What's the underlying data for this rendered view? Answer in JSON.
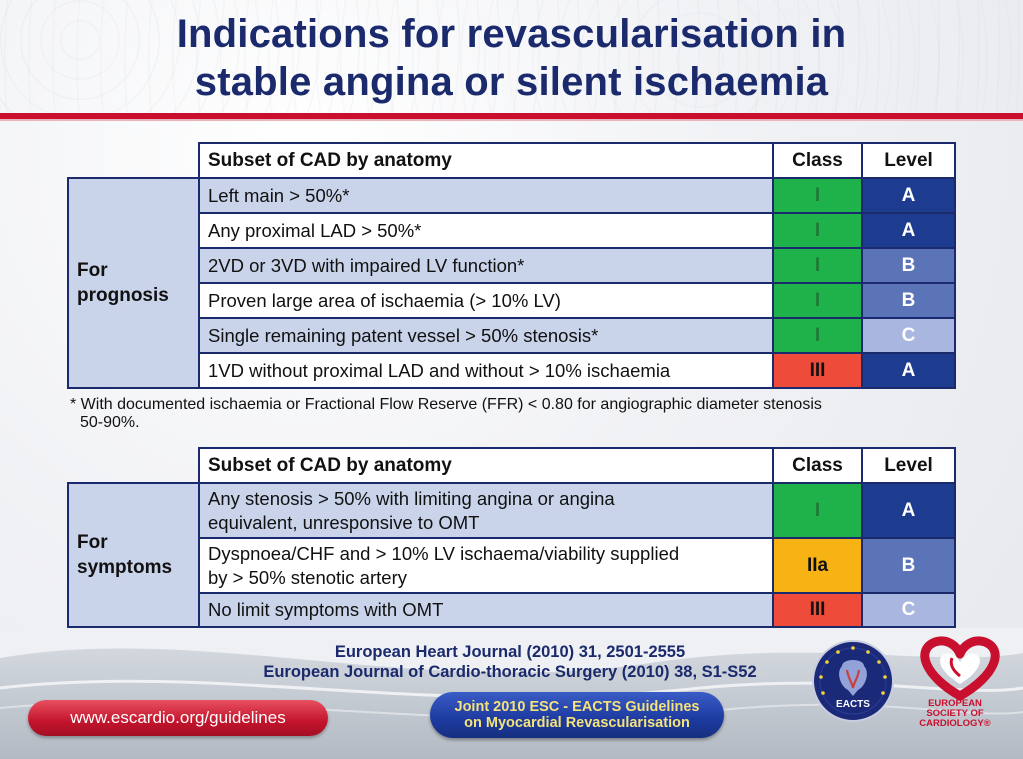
{
  "title": {
    "line1": "Indications for revascularisation in",
    "line2": "stable angina or silent ischaemia"
  },
  "prognosis_table": {
    "headers": {
      "subset": "Subset of CAD by anatomy",
      "class": "Class",
      "level": "Level"
    },
    "group_label_line1": "For",
    "group_label_line2": "prognosis",
    "rows": [
      {
        "subset": "Left main > 50%*",
        "class": "I",
        "level": "A"
      },
      {
        "subset": "Any proximal LAD > 50%*",
        "class": "I",
        "level": "A"
      },
      {
        "subset": "2VD or 3VD with impaired LV function*",
        "class": "I",
        "level": "B"
      },
      {
        "subset": "Proven large area of ischaemia (> 10% LV)",
        "class": "I",
        "level": "B"
      },
      {
        "subset": "Single remaining patent vessel > 50% stenosis*",
        "class": "I",
        "level": "C"
      },
      {
        "subset": "1VD without proximal LAD and without > 10% ischaemia",
        "class": "III",
        "level": "A"
      }
    ]
  },
  "footnote": {
    "line1": "* With documented ischaemia or Fractional Flow Reserve (FFR) < 0.80 for angiographic diameter stenosis",
    "line2": "50-90%."
  },
  "symptoms_table": {
    "headers": {
      "subset": "Subset of CAD by anatomy",
      "class": "Class",
      "level": "Level"
    },
    "group_label_line1": "For",
    "group_label_line2": "symptoms",
    "rows": [
      {
        "subset_line1": "Any stenosis > 50% with limiting angina or angina",
        "subset_line2": "equivalent, unresponsive to OMT",
        "class": "I",
        "level": "A"
      },
      {
        "subset_line1": "Dyspnoea/CHF and > 10% LV ischaema/viability supplied",
        "subset_line2": "by > 50% stenotic artery",
        "class": "IIa",
        "level": "B"
      },
      {
        "subset_line1": "No limit symptoms with OMT",
        "subset_line2": "",
        "class": "III",
        "level": "C"
      }
    ]
  },
  "references": {
    "line1": "European Heart Journal (2010) 31, 2501-2555",
    "line2": "European Journal of Cardio-thoracic Surgery (2010) 38, S1-S52"
  },
  "url": "www.escardio.org/guidelines",
  "joint": {
    "line1": "Joint 2010 ESC - EACTS Guidelines",
    "line2": "on Myocardial Revascularisation"
  },
  "logos": {
    "eacts_text": "EACTS",
    "esc_line1": "EUROPEAN",
    "esc_line2": "SOCIETY OF",
    "esc_line3": "CARDIOLOGY®"
  },
  "colors": {
    "title": "#1a2a6c",
    "accent_red": "#c8102e",
    "class_I": "#1fb24a",
    "class_IIa": "#f6b313",
    "class_III": "#ee4b3b",
    "level_A": "#1d3c8f",
    "level_B": "#5b73b7",
    "level_C": "#a8b6e0",
    "row_shade": "#c9d3ea"
  }
}
